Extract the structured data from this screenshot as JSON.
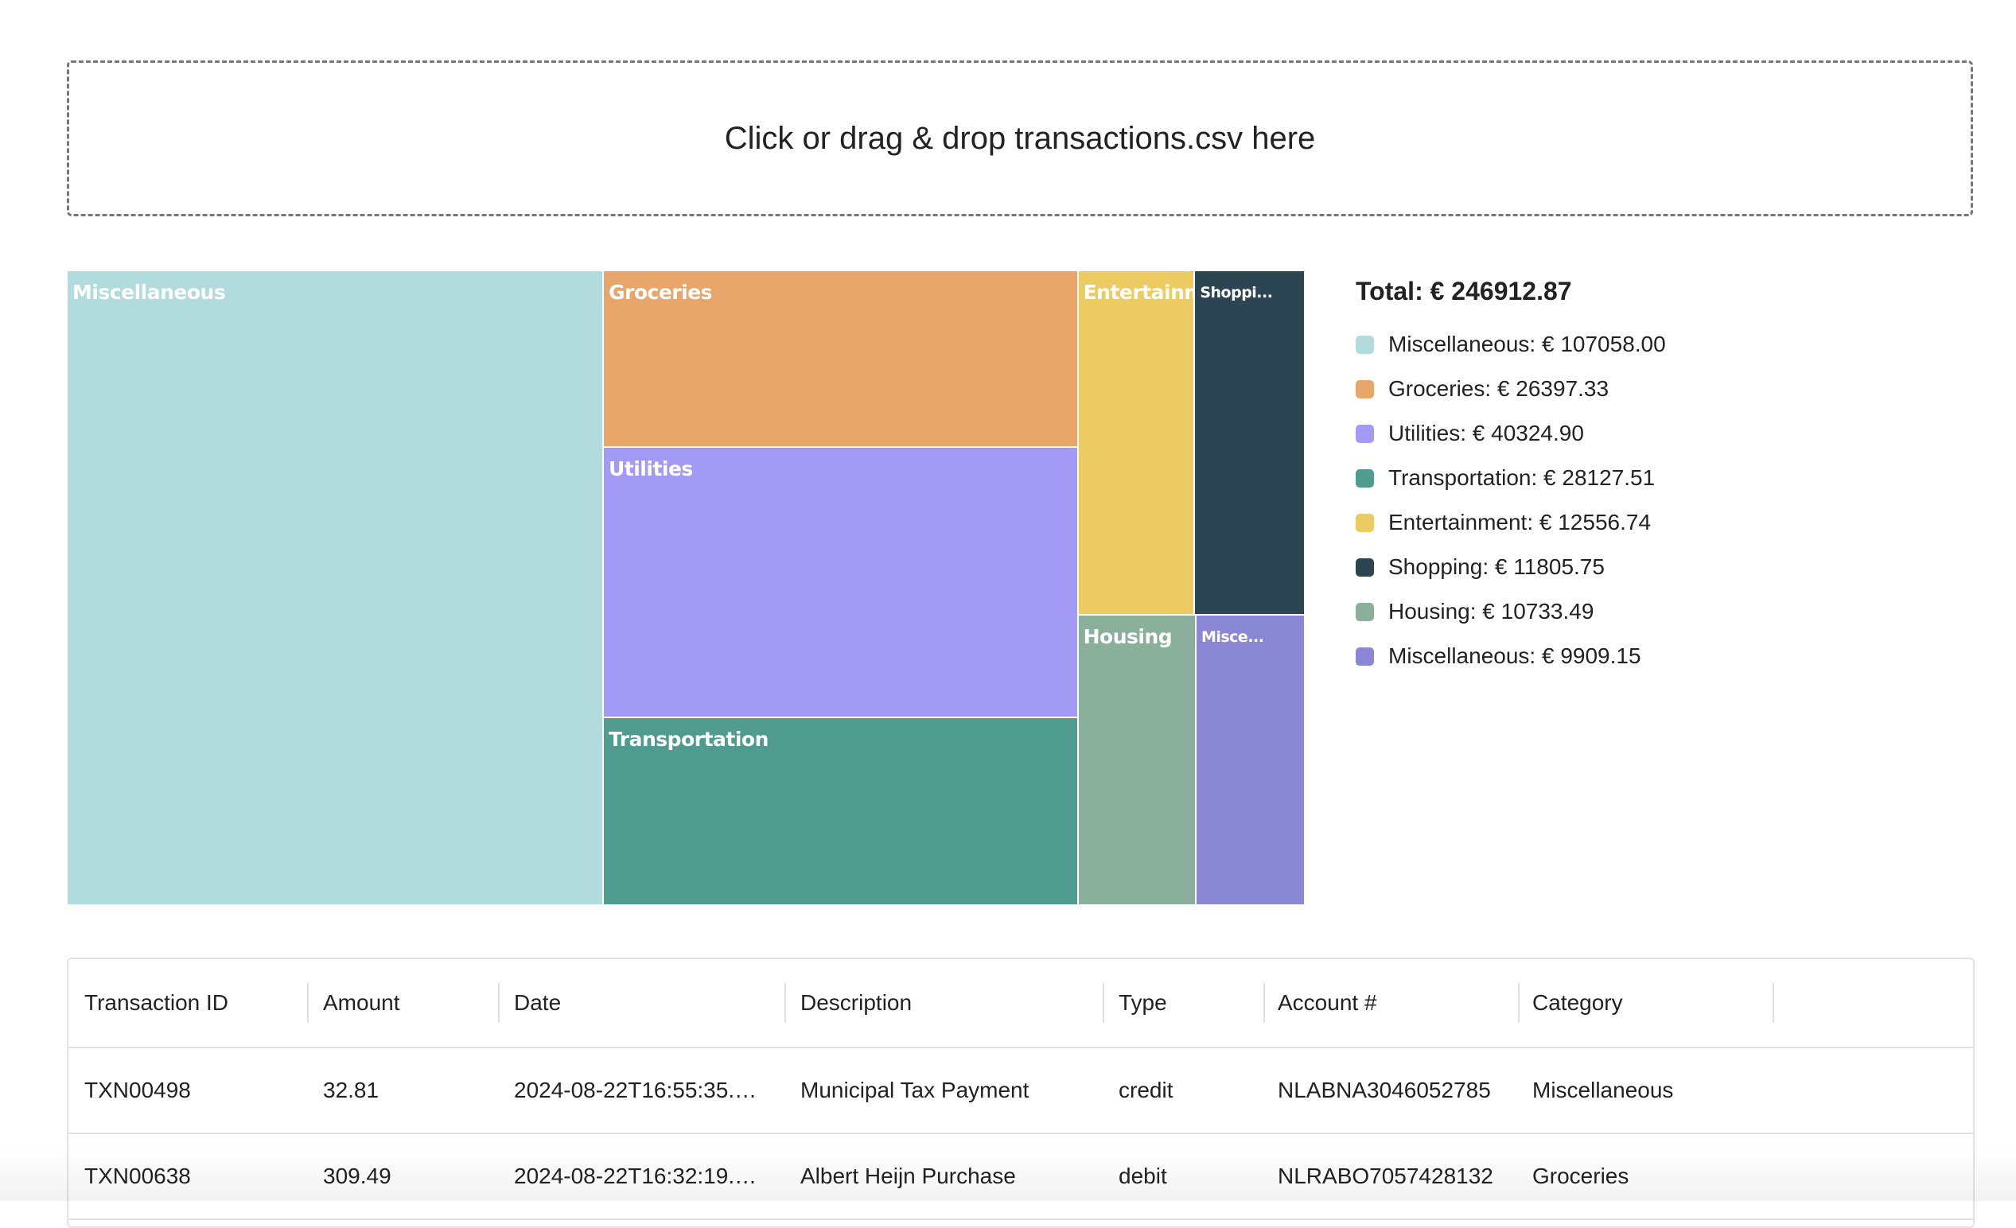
{
  "dropzone": {
    "text": "Click or drag & drop transactions.csv here"
  },
  "treemap": {
    "tiles": [
      {
        "label": "Miscellaneous",
        "color": "#b2dbdd"
      },
      {
        "label": "Groceries",
        "color": "#e8a66b"
      },
      {
        "label": "Utilities",
        "color": "#a29af5"
      },
      {
        "label": "Transportation",
        "color": "#4f9b8d"
      },
      {
        "label": "Entertainment",
        "color": "#ebcb62"
      },
      {
        "label": "Shoppi...",
        "color": "#2d4553"
      },
      {
        "label": "Housing",
        "color": "#8ab09b"
      },
      {
        "label": "Misce...",
        "color": "#8a87d4"
      }
    ]
  },
  "legend": {
    "total": "Total: € 246912.87",
    "items": [
      {
        "label": "Miscellaneous: € 107058.00",
        "color": "#b2dbdd"
      },
      {
        "label": "Groceries: € 26397.33",
        "color": "#e8a66b"
      },
      {
        "label": "Utilities: € 40324.90",
        "color": "#a29af5"
      },
      {
        "label": "Transportation: € 28127.51",
        "color": "#4f9b8d"
      },
      {
        "label": "Entertainment: € 12556.74",
        "color": "#ebcb62"
      },
      {
        "label": "Shopping: € 11805.75",
        "color": "#2d4553"
      },
      {
        "label": "Housing: € 10733.49",
        "color": "#8ab09b"
      },
      {
        "label": "Miscellaneous: € 9909.15",
        "color": "#8a87d4"
      }
    ]
  },
  "table": {
    "columns": [
      "Transaction ID",
      "Amount",
      "Date",
      "Description",
      "Type",
      "Account #",
      "Category"
    ],
    "rows": [
      [
        "TXN00498",
        "32.81",
        "2024-08-22T16:55:35.…",
        "Municipal Tax Payment",
        "credit",
        "NLABNA3046052785",
        "Miscellaneous"
      ],
      [
        "TXN00638",
        "309.49",
        "2024-08-22T16:32:19.…",
        "Albert Heijn Purchase",
        "debit",
        "NLRABO7057428132",
        "Groceries"
      ]
    ]
  }
}
